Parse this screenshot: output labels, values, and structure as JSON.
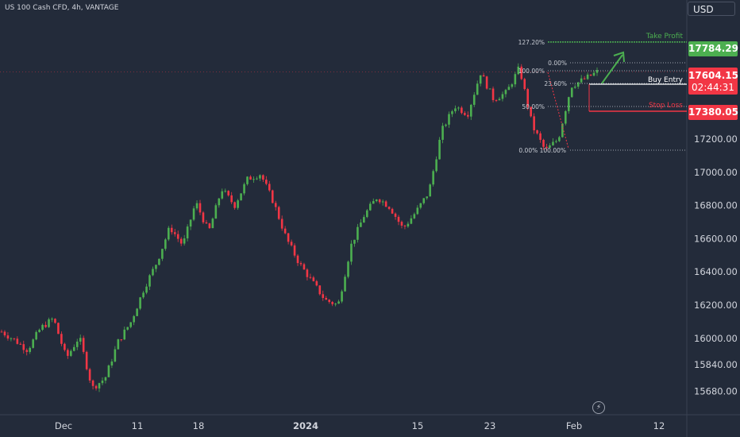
{
  "chart_title": "US 100 Cash CFD, 4h, VANTAGE",
  "currency": "USD",
  "colors": {
    "background": "#232b3a",
    "up": "#4caf50",
    "down": "#f23645",
    "take_profit": "#4caf50",
    "stop_loss": "#f23645",
    "buy_entry": "#ffffff"
  },
  "chart_data": {
    "type": "candlestick",
    "y_axis": {
      "ticks": [
        "17200.00",
        "17000.00",
        "16800.00",
        "16600.00",
        "16400.00",
        "16200.00",
        "16000.00",
        "15840.00",
        "15680.00"
      ],
      "ylim": [
        15600,
        17950
      ]
    },
    "x_axis": {
      "ticks": [
        "Dec",
        "11",
        "18",
        "2024",
        "15",
        "23",
        "Feb",
        "12"
      ]
    },
    "price_labels": {
      "take_profit": "17784.29",
      "current": "17604.15",
      "countdown": "02:44:31",
      "stop_loss": "17380.05"
    },
    "annotations": {
      "take_profit_label": "Take Profit",
      "buy_entry_label": "Buy Entry",
      "stop_loss_label": "Stop Loss",
      "fib_upper": [
        "127.20%",
        "0.00%",
        "100.00%",
        "23.60%",
        "50.00%"
      ],
      "fib_lower": "0.00% 100.00%"
    },
    "levels": {
      "take_profit": 17784.29,
      "current": 17604.15,
      "buy_entry": 17540,
      "stop_loss": 17380.05,
      "fib_low": 17130
    },
    "price_path": [
      16040,
      15990,
      15930,
      16060,
      16120,
      15880,
      16010,
      15700,
      15760,
      15980,
      16100,
      16300,
      16460,
      16670,
      16560,
      16820,
      16640,
      16900,
      16800,
      16960,
      16990,
      16820,
      16600,
      16450,
      16340,
      16230,
      16200,
      16560,
      16740,
      16850,
      16790,
      16660,
      16760,
      16880,
      17250,
      17400,
      17350,
      17600,
      17440,
      17480,
      17630,
      17280,
      17130,
      17200,
      17520,
      17560,
      17604
    ]
  }
}
